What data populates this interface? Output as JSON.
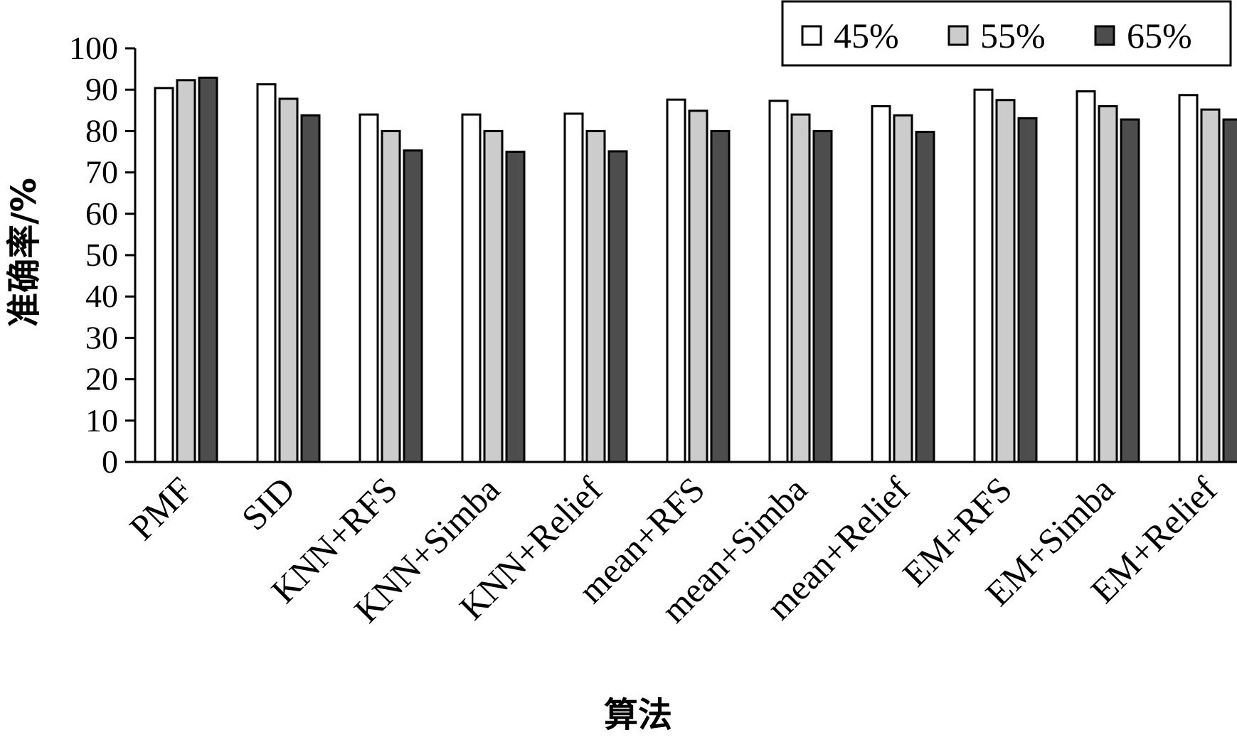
{
  "chart_data": {
    "type": "bar",
    "xlabel": "算法",
    "ylabel": "准确率/%",
    "ylim": [
      0,
      100
    ],
    "yticks": [
      0,
      10,
      20,
      30,
      40,
      50,
      60,
      70,
      80,
      90,
      100
    ],
    "grid": false,
    "legend_position": "top-right",
    "categories": [
      "PMF",
      "SID",
      "KNN+RFS",
      "KNN+Simba",
      "KNN+Relief",
      "mean+RFS",
      "mean+Simba",
      "mean+Relief",
      "EM+RFS",
      "EM+Simba",
      "EM+Relief"
    ],
    "series": [
      {
        "name": "45%",
        "color": "#ffffff",
        "values": [
          90.4,
          91.3,
          84.0,
          84.0,
          84.2,
          87.6,
          87.3,
          86.0,
          90.0,
          89.6,
          88.7
        ]
      },
      {
        "name": "55%",
        "color": "#cccccc",
        "values": [
          92.3,
          87.8,
          80.0,
          80.0,
          80.0,
          84.9,
          84.0,
          83.8,
          87.5,
          86.0,
          85.2
        ]
      },
      {
        "name": "65%",
        "color": "#4d4d4d",
        "values": [
          92.9,
          83.8,
          75.3,
          75.0,
          75.1,
          80.0,
          80.0,
          79.8,
          83.1,
          82.8,
          82.8
        ]
      }
    ]
  }
}
